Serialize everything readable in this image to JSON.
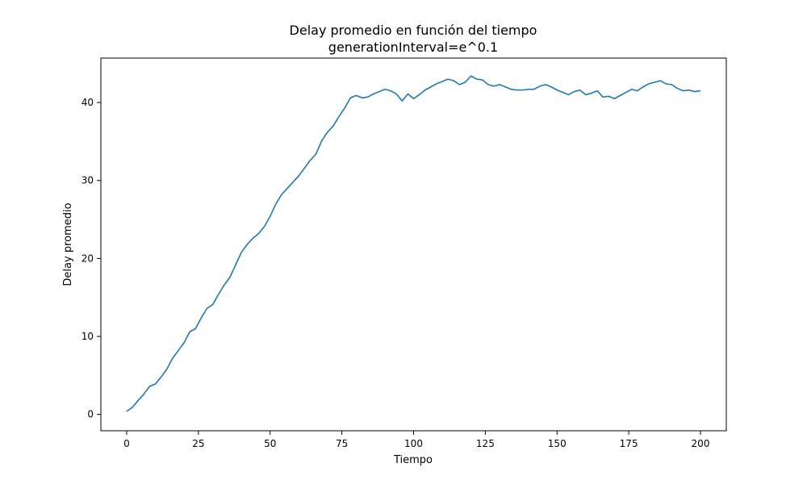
{
  "chart_data": {
    "type": "line",
    "title": "Delay promedio en función del tiempo",
    "subtitle": "generationInterval=e^0.1",
    "xlabel": "Tiempo",
    "ylabel": "Delay promedio",
    "xlim": [
      -9,
      209
    ],
    "ylim": [
      -2.1,
      45.7
    ],
    "xticks": [
      0,
      25,
      50,
      75,
      100,
      125,
      150,
      175,
      200
    ],
    "yticks": [
      0,
      10,
      20,
      30,
      40
    ],
    "grid": false,
    "line_color": "#1f77b4",
    "series": [
      {
        "x": [
          0,
          2,
          4,
          6,
          8,
          10,
          12,
          14,
          16,
          18,
          20,
          22,
          24,
          26,
          28,
          30,
          32,
          34,
          36,
          38,
          40,
          42,
          44,
          46,
          48,
          50,
          52,
          54,
          56,
          58,
          60,
          62,
          64,
          66,
          68,
          70,
          72,
          74,
          76,
          78,
          80,
          82,
          84,
          86,
          88,
          90,
          92,
          94,
          96,
          98,
          100,
          102,
          104,
          106,
          108,
          110,
          112,
          114,
          116,
          118,
          120,
          122,
          124,
          126,
          128,
          130,
          132,
          134,
          136,
          138,
          140,
          142,
          144,
          146,
          148,
          150,
          152,
          154,
          156,
          158,
          160,
          162,
          164,
          166,
          168,
          170,
          172,
          174,
          176,
          178,
          180,
          182,
          184,
          186,
          188,
          190,
          192,
          194,
          196,
          198,
          200
        ],
        "y": [
          0.4,
          0.9,
          1.8,
          2.6,
          3.6,
          3.9,
          4.8,
          5.8,
          7.2,
          8.2,
          9.2,
          10.6,
          11.0,
          12.4,
          13.6,
          14.1,
          15.4,
          16.6,
          17.6,
          19.2,
          20.8,
          21.8,
          22.6,
          23.2,
          24.1,
          25.4,
          27.0,
          28.2,
          29.0,
          29.8,
          30.6,
          31.6,
          32.6,
          33.4,
          35.1,
          36.2,
          37.0,
          38.2,
          39.3,
          40.6,
          40.9,
          40.6,
          40.7,
          41.1,
          41.4,
          41.7,
          41.5,
          41.1,
          40.2,
          41.1,
          40.5,
          41.0,
          41.6,
          42.0,
          42.4,
          42.7,
          43.0,
          42.8,
          42.3,
          42.6,
          43.4,
          43.0,
          42.9,
          42.3,
          42.1,
          42.3,
          42.0,
          41.7,
          41.6,
          41.6,
          41.7,
          41.7,
          42.1,
          42.3,
          42.0,
          41.6,
          41.3,
          41.0,
          41.4,
          41.6,
          41.0,
          41.2,
          41.5,
          40.7,
          40.8,
          40.5,
          40.9,
          41.3,
          41.7,
          41.5,
          42.0,
          42.4,
          42.6,
          42.8,
          42.4,
          42.3,
          41.8,
          41.5,
          41.6,
          41.4,
          41.5
        ]
      }
    ]
  }
}
